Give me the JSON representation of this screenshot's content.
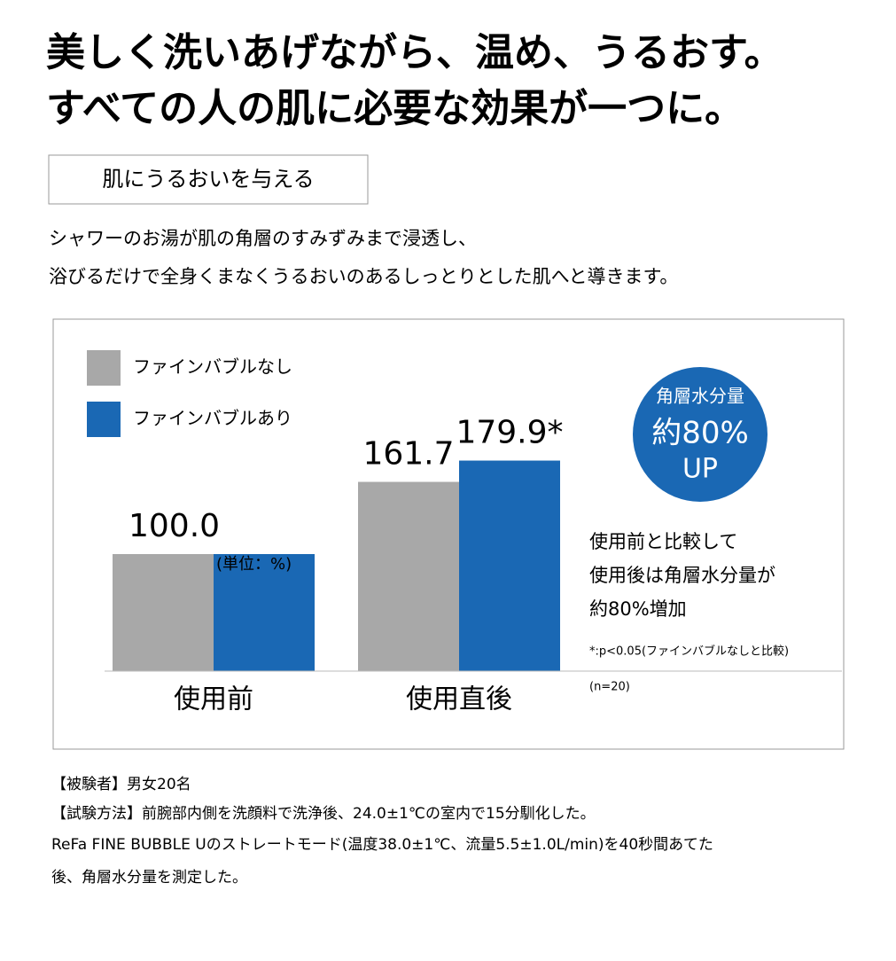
{
  "header": {
    "lines": [
      "美しく洗いあげながら、温め、うるおす。",
      "すべての人の肌に必要な効果が一つに。"
    ]
  },
  "section": {
    "label": "肌にうるおいを与える",
    "body": [
      "シャワーのお湯が肌の角層のすみずみまで浸透し、",
      "浴びるだけで全身くまなくうるおいのあるしっとりとした肌へと導きます。"
    ]
  },
  "chart_data": {
    "type": "bar",
    "categories": [
      "使用前",
      "使用直後"
    ],
    "series": [
      {
        "name": "ファインバブルなし",
        "color": "#a8a8a8",
        "values": [
          100.0,
          161.7
        ],
        "value_labels": [
          "100.0",
          "161.7"
        ]
      },
      {
        "name": "ファインバブルあり",
        "color": "#1a68b4",
        "values": [
          100.0,
          179.9
        ],
        "value_labels": [
          null,
          "179.9*"
        ]
      }
    ],
    "unit_note": "(単位：%)",
    "badge": [
      "角層水分量",
      "約80%",
      "UP"
    ],
    "side_note": [
      "使用前と比較して",
      "使用後は角層水分量が",
      "約80%増加"
    ],
    "footnote": "*:p<0.05(ファインバブルなしと比較)",
    "sample": "(n=20)",
    "legend": "top-left"
  },
  "notes": [
    "【被験者】男女20名",
    "【試験方法】前腕部内側を洗顔料で洗浄後、24.0±1℃の室内で15分馴化した。",
    "ReFa FINE BUBBLE Uのストレートモード(温度38.0±1℃、流量5.5±1.0L/min)を40秒間あてた",
    "後、角層水分量を測定した。"
  ]
}
